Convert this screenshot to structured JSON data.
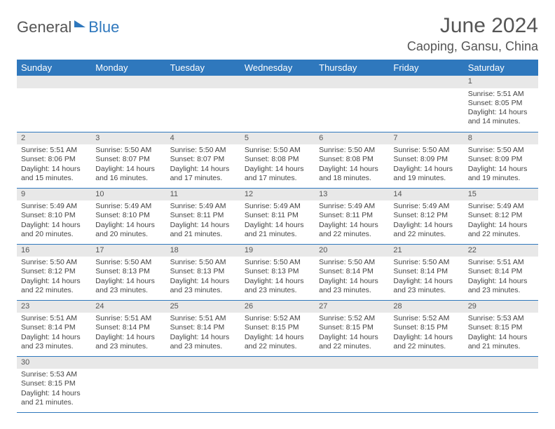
{
  "brand": {
    "part1": "General",
    "part2": "Blue"
  },
  "title": "June 2024",
  "location": "Caoping, Gansu, China",
  "colors": {
    "header_bg": "#2f78bd",
    "header_text": "#ffffff",
    "daynum_bg": "#e8e8e8",
    "row_border": "#2f78bd",
    "body_text": "#444444",
    "title_text": "#555555"
  },
  "weekdays": [
    "Sunday",
    "Monday",
    "Tuesday",
    "Wednesday",
    "Thursday",
    "Friday",
    "Saturday"
  ],
  "weeks": [
    [
      null,
      null,
      null,
      null,
      null,
      null,
      {
        "d": "1",
        "rise": "5:51 AM",
        "set": "8:05 PM",
        "dl": "14 hours and 14 minutes."
      }
    ],
    [
      {
        "d": "2",
        "rise": "5:51 AM",
        "set": "8:06 PM",
        "dl": "14 hours and 15 minutes."
      },
      {
        "d": "3",
        "rise": "5:50 AM",
        "set": "8:07 PM",
        "dl": "14 hours and 16 minutes."
      },
      {
        "d": "4",
        "rise": "5:50 AM",
        "set": "8:07 PM",
        "dl": "14 hours and 17 minutes."
      },
      {
        "d": "5",
        "rise": "5:50 AM",
        "set": "8:08 PM",
        "dl": "14 hours and 17 minutes."
      },
      {
        "d": "6",
        "rise": "5:50 AM",
        "set": "8:08 PM",
        "dl": "14 hours and 18 minutes."
      },
      {
        "d": "7",
        "rise": "5:50 AM",
        "set": "8:09 PM",
        "dl": "14 hours and 19 minutes."
      },
      {
        "d": "8",
        "rise": "5:50 AM",
        "set": "8:09 PM",
        "dl": "14 hours and 19 minutes."
      }
    ],
    [
      {
        "d": "9",
        "rise": "5:49 AM",
        "set": "8:10 PM",
        "dl": "14 hours and 20 minutes."
      },
      {
        "d": "10",
        "rise": "5:49 AM",
        "set": "8:10 PM",
        "dl": "14 hours and 20 minutes."
      },
      {
        "d": "11",
        "rise": "5:49 AM",
        "set": "8:11 PM",
        "dl": "14 hours and 21 minutes."
      },
      {
        "d": "12",
        "rise": "5:49 AM",
        "set": "8:11 PM",
        "dl": "14 hours and 21 minutes."
      },
      {
        "d": "13",
        "rise": "5:49 AM",
        "set": "8:11 PM",
        "dl": "14 hours and 22 minutes."
      },
      {
        "d": "14",
        "rise": "5:49 AM",
        "set": "8:12 PM",
        "dl": "14 hours and 22 minutes."
      },
      {
        "d": "15",
        "rise": "5:49 AM",
        "set": "8:12 PM",
        "dl": "14 hours and 22 minutes."
      }
    ],
    [
      {
        "d": "16",
        "rise": "5:50 AM",
        "set": "8:12 PM",
        "dl": "14 hours and 22 minutes."
      },
      {
        "d": "17",
        "rise": "5:50 AM",
        "set": "8:13 PM",
        "dl": "14 hours and 23 minutes."
      },
      {
        "d": "18",
        "rise": "5:50 AM",
        "set": "8:13 PM",
        "dl": "14 hours and 23 minutes."
      },
      {
        "d": "19",
        "rise": "5:50 AM",
        "set": "8:13 PM",
        "dl": "14 hours and 23 minutes."
      },
      {
        "d": "20",
        "rise": "5:50 AM",
        "set": "8:14 PM",
        "dl": "14 hours and 23 minutes."
      },
      {
        "d": "21",
        "rise": "5:50 AM",
        "set": "8:14 PM",
        "dl": "14 hours and 23 minutes."
      },
      {
        "d": "22",
        "rise": "5:51 AM",
        "set": "8:14 PM",
        "dl": "14 hours and 23 minutes."
      }
    ],
    [
      {
        "d": "23",
        "rise": "5:51 AM",
        "set": "8:14 PM",
        "dl": "14 hours and 23 minutes."
      },
      {
        "d": "24",
        "rise": "5:51 AM",
        "set": "8:14 PM",
        "dl": "14 hours and 23 minutes."
      },
      {
        "d": "25",
        "rise": "5:51 AM",
        "set": "8:14 PM",
        "dl": "14 hours and 23 minutes."
      },
      {
        "d": "26",
        "rise": "5:52 AM",
        "set": "8:15 PM",
        "dl": "14 hours and 22 minutes."
      },
      {
        "d": "27",
        "rise": "5:52 AM",
        "set": "8:15 PM",
        "dl": "14 hours and 22 minutes."
      },
      {
        "d": "28",
        "rise": "5:52 AM",
        "set": "8:15 PM",
        "dl": "14 hours and 22 minutes."
      },
      {
        "d": "29",
        "rise": "5:53 AM",
        "set": "8:15 PM",
        "dl": "14 hours and 21 minutes."
      }
    ],
    [
      {
        "d": "30",
        "rise": "5:53 AM",
        "set": "8:15 PM",
        "dl": "14 hours and 21 minutes."
      },
      null,
      null,
      null,
      null,
      null,
      null
    ]
  ],
  "labels": {
    "sunrise": "Sunrise:",
    "sunset": "Sunset:",
    "daylight": "Daylight:"
  }
}
